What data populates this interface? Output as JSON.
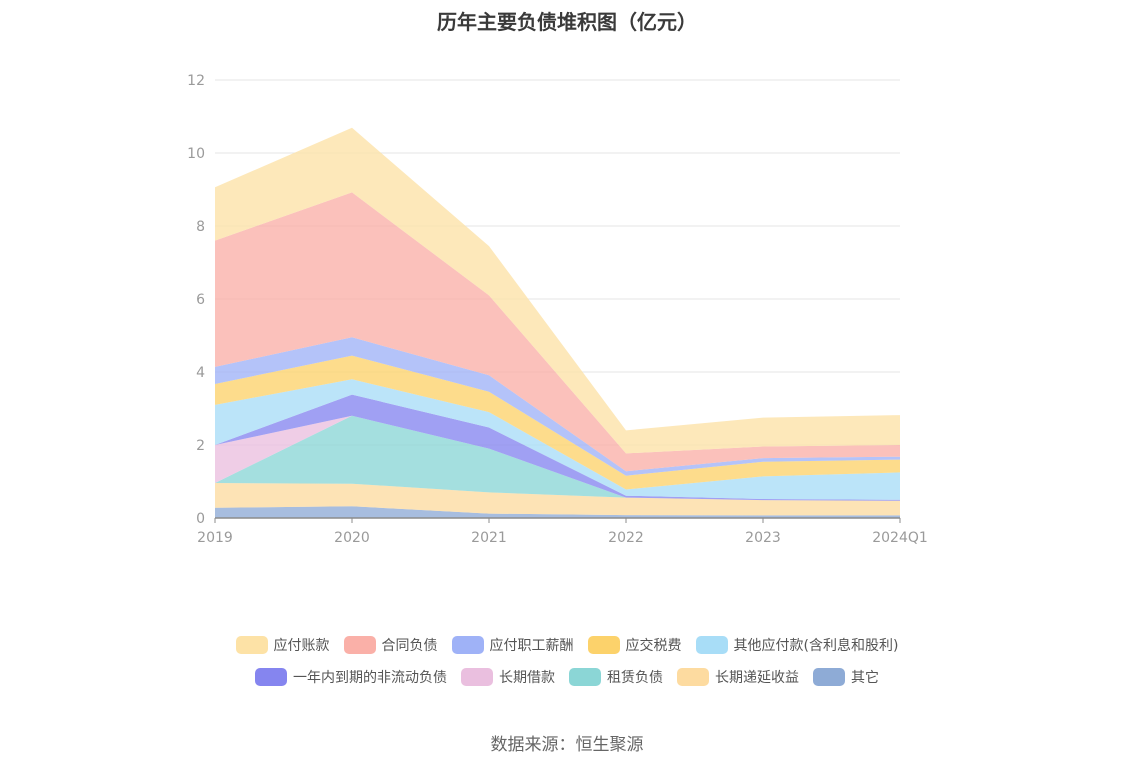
{
  "chart_data": {
    "type": "area",
    "stacked": true,
    "title": "历年主要负债堆积图（亿元）",
    "x": [
      "2019",
      "2020",
      "2021",
      "2022",
      "2023",
      "2024Q1"
    ],
    "ylim": [
      0,
      12
    ],
    "yticks": [
      0,
      2,
      4,
      6,
      8,
      10,
      12
    ],
    "grid": true,
    "legend_position": "bottom",
    "source": "数据来源：恒生聚源",
    "series": [
      {
        "name": "其它",
        "color": "#8eabd6",
        "values": [
          0.28,
          0.32,
          0.12,
          0.08,
          0.07,
          0.07
        ]
      },
      {
        "name": "长期递延收益",
        "color": "#fddba0",
        "values": [
          0.68,
          0.62,
          0.58,
          0.48,
          0.42,
          0.4
        ]
      },
      {
        "name": "租赁负债",
        "color": "#8bd6d6",
        "values": [
          0.0,
          1.86,
          1.2,
          0.0,
          0.0,
          0.0
        ]
      },
      {
        "name": "长期借款",
        "color": "#eabfdf",
        "values": [
          1.04,
          0.0,
          0.0,
          0.0,
          0.0,
          0.0
        ]
      },
      {
        "name": "一年内到期的非流动负债",
        "color": "#8585ef",
        "values": [
          0.0,
          0.58,
          0.58,
          0.05,
          0.03,
          0.03
        ]
      },
      {
        "name": "其他应付款(含利息和股利)",
        "color": "#a8ddf7",
        "values": [
          1.1,
          0.42,
          0.42,
          0.17,
          0.62,
          0.75
        ]
      },
      {
        "name": "应交税费",
        "color": "#fcd26b",
        "values": [
          0.57,
          0.65,
          0.56,
          0.38,
          0.4,
          0.35
        ]
      },
      {
        "name": "应付职工薪酬",
        "color": "#9fb2f7",
        "values": [
          0.47,
          0.5,
          0.45,
          0.12,
          0.1,
          0.08
        ]
      },
      {
        "name": "合同负债",
        "color": "#fab0a8",
        "values": [
          3.46,
          3.97,
          2.19,
          0.49,
          0.32,
          0.32
        ]
      },
      {
        "name": "应付账款",
        "color": "#fde2a6",
        "values": [
          1.46,
          1.77,
          1.35,
          0.63,
          0.79,
          0.82
        ]
      }
    ],
    "legend_rows": [
      [
        "应付账款",
        "合同负债",
        "应付职工薪酬",
        "应交税费",
        "其他应付款(含利息和股利)"
      ],
      [
        "一年内到期的非流动负债",
        "长期借款",
        "租赁负债",
        "长期递延收益",
        "其它"
      ]
    ]
  }
}
